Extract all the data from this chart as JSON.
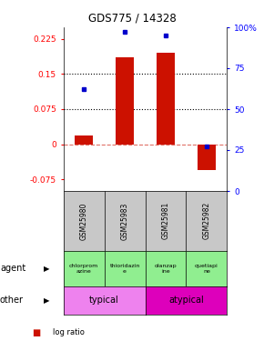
{
  "title": "GDS775 / 14328",
  "samples": [
    "GSM25980",
    "GSM25983",
    "GSM25981",
    "GSM25982"
  ],
  "log_ratio": [
    0.018,
    0.185,
    0.195,
    -0.055
  ],
  "percentile": [
    0.62,
    0.97,
    0.95,
    0.27
  ],
  "agent_labels": [
    "chlorprom\nazine",
    "thioridazin\ne",
    "olanzap\nine",
    "quetiapi\nne"
  ],
  "agent_color": "#90ee90",
  "other_labels": [
    "typical",
    "atypical"
  ],
  "typical_color": "#ee82ee",
  "atypical_color": "#dd00bb",
  "bar_color": "#cc1100",
  "dot_color": "#0000cc",
  "gsm_color": "#c8c8c8",
  "left_ylim": [
    -0.1,
    0.25
  ],
  "right_ylim": [
    0.0,
    1.0
  ],
  "left_yticks": [
    -0.075,
    0,
    0.075,
    0.15,
    0.225
  ],
  "right_yticks": [
    0.0,
    0.25,
    0.5,
    0.75,
    1.0
  ],
  "right_yticklabels": [
    "0",
    "25",
    "50",
    "75",
    "100%"
  ],
  "hlines": [
    0.075,
    0.15
  ],
  "bar_width": 0.45,
  "background_color": "#ffffff"
}
